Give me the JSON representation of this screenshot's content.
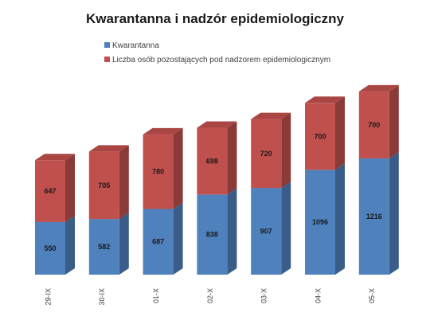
{
  "chart_data": {
    "type": "bar",
    "stacked": true,
    "style": "3d-column",
    "title": "Kwarantanna i nadzór epidemiologiczny",
    "categories": [
      "29-IX",
      "30-IX",
      "01-X",
      "02-X",
      "03-X",
      "04-X",
      "05-X"
    ],
    "series": [
      {
        "name": "Kwarantanna",
        "color": "#4f81bd",
        "values": [
          550,
          582,
          687,
          838,
          907,
          1096,
          1216
        ]
      },
      {
        "name": "Liczba osób pozostających pod nadzorem epidemiologicznym",
        "color": "#c0504d",
        "values": [
          647,
          705,
          780,
          698,
          720,
          700,
          700
        ]
      }
    ],
    "ylim": [
      0,
      1916
    ],
    "grid": false,
    "legend_position": "top",
    "data_labels": true
  }
}
